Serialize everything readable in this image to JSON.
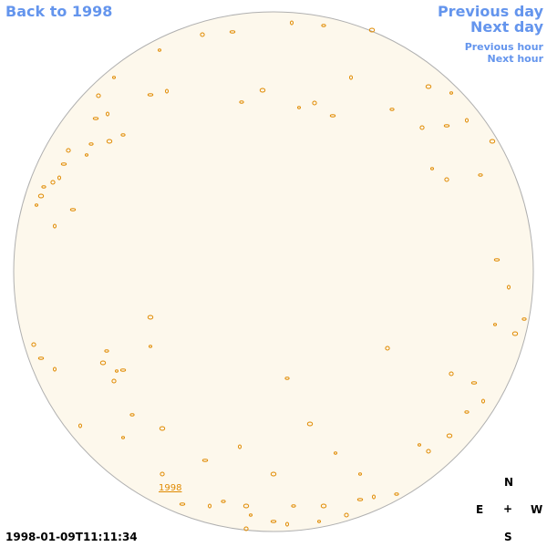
{
  "nav": {
    "back": "Back to 1998",
    "previous_day": "Previous day",
    "next_day": "Next day",
    "previous_hour": "Previous hour",
    "next_hour": "Next hour"
  },
  "disk": {
    "year_link": "1998"
  },
  "compass": {
    "north": "N",
    "east": "E",
    "center": "+",
    "west": "W",
    "south": "S"
  },
  "timestamp": "1998-01-09T11:11:34"
}
